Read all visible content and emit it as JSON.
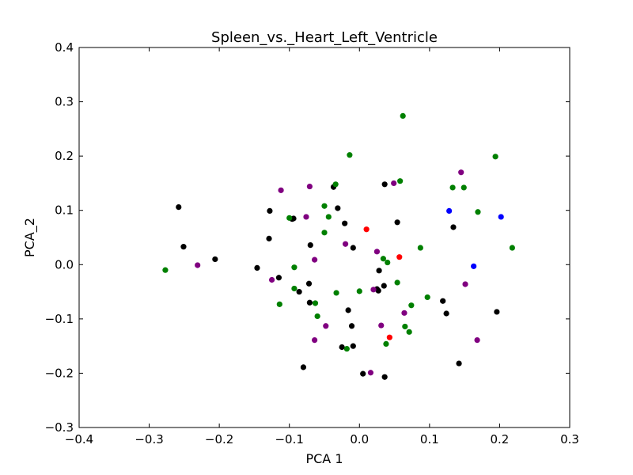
{
  "chart_data": {
    "type": "scatter",
    "title": "Spleen_vs._Heart_Left_Ventricle",
    "xlabel": "PCA 1",
    "ylabel": "PCA_2",
    "xlim": [
      -0.4,
      0.3
    ],
    "ylim": [
      -0.3,
      0.4
    ],
    "x_ticks": [
      -0.4,
      -0.3,
      -0.2,
      -0.1,
      0.0,
      0.1,
      0.2,
      0.3
    ],
    "y_ticks": [
      -0.3,
      -0.2,
      -0.1,
      0.0,
      0.1,
      0.2,
      0.3,
      0.4
    ],
    "x_tick_labels": [
      "−0.4",
      "−0.3",
      "−0.2",
      "−0.1",
      "0.0",
      "0.1",
      "0.2",
      "0.3"
    ],
    "y_tick_labels": [
      "−0.3",
      "−0.2",
      "−0.1",
      "0.0",
      "0.1",
      "0.2",
      "0.3",
      "0.4"
    ],
    "grid": false,
    "legend": "none",
    "series": [
      {
        "color": "#000000",
        "points": [
          [
            -0.258,
            0.106
          ],
          [
            -0.251,
            0.033
          ],
          [
            -0.206,
            0.01
          ],
          [
            -0.146,
            -0.006
          ],
          [
            -0.128,
            0.099
          ],
          [
            -0.129,
            0.048
          ],
          [
            -0.115,
            -0.024
          ],
          [
            -0.096,
            0.084
          ],
          [
            -0.094,
            0.085
          ],
          [
            -0.086,
            -0.05
          ],
          [
            -0.072,
            -0.035
          ],
          [
            -0.071,
            -0.07
          ],
          [
            -0.07,
            0.036
          ],
          [
            -0.08,
            -0.189
          ],
          [
            -0.037,
            0.143
          ],
          [
            -0.031,
            0.104
          ],
          [
            -0.021,
            0.076
          ],
          [
            -0.016,
            -0.084
          ],
          [
            -0.009,
            0.031
          ],
          [
            -0.011,
            -0.113
          ],
          [
            -0.025,
            -0.152
          ],
          [
            -0.009,
            -0.15
          ],
          [
            0.005,
            -0.201
          ],
          [
            0.025,
            -0.045
          ],
          [
            0.027,
            -0.048
          ],
          [
            0.028,
            -0.011
          ],
          [
            0.035,
            -0.039
          ],
          [
            0.036,
            0.148
          ],
          [
            0.036,
            -0.207
          ],
          [
            0.054,
            0.078
          ],
          [
            0.119,
            -0.067
          ],
          [
            0.124,
            -0.09
          ],
          [
            0.134,
            0.069
          ],
          [
            0.142,
            -0.182
          ],
          [
            0.196,
            -0.087
          ]
        ]
      },
      {
        "color": "#008000",
        "points": [
          [
            -0.277,
            -0.01
          ],
          [
            -0.114,
            -0.073
          ],
          [
            -0.1,
            0.086
          ],
          [
            -0.093,
            -0.005
          ],
          [
            -0.093,
            -0.044
          ],
          [
            -0.063,
            -0.071
          ],
          [
            -0.06,
            -0.095
          ],
          [
            -0.05,
            0.108
          ],
          [
            -0.05,
            0.059
          ],
          [
            -0.044,
            0.088
          ],
          [
            -0.034,
            0.148
          ],
          [
            -0.033,
            -0.052
          ],
          [
            -0.018,
            -0.155
          ],
          [
            -0.014,
            0.202
          ],
          [
            0.0,
            -0.049
          ],
          [
            0.034,
            0.011
          ],
          [
            0.038,
            -0.146
          ],
          [
            0.04,
            0.004
          ],
          [
            0.054,
            -0.033
          ],
          [
            0.058,
            0.154
          ],
          [
            0.062,
            0.274
          ],
          [
            0.065,
            -0.114
          ],
          [
            0.071,
            -0.124
          ],
          [
            0.074,
            -0.075
          ],
          [
            0.087,
            0.031
          ],
          [
            0.097,
            -0.06
          ],
          [
            0.133,
            0.142
          ],
          [
            0.149,
            0.142
          ],
          [
            0.169,
            0.097
          ],
          [
            0.194,
            0.199
          ],
          [
            0.218,
            0.031
          ]
        ]
      },
      {
        "color": "#800080",
        "points": [
          [
            -0.231,
            -0.001
          ],
          [
            -0.125,
            -0.028
          ],
          [
            -0.112,
            0.137
          ],
          [
            -0.076,
            0.088
          ],
          [
            -0.071,
            0.144
          ],
          [
            -0.064,
            0.009
          ],
          [
            -0.064,
            -0.139
          ],
          [
            -0.048,
            -0.113
          ],
          [
            -0.02,
            0.038
          ],
          [
            0.016,
            -0.199
          ],
          [
            0.02,
            -0.046
          ],
          [
            0.025,
            0.024
          ],
          [
            0.031,
            -0.112
          ],
          [
            0.049,
            0.15
          ],
          [
            0.064,
            -0.089
          ],
          [
            0.145,
            0.17
          ],
          [
            0.151,
            -0.036
          ],
          [
            0.168,
            -0.139
          ]
        ]
      },
      {
        "color": "#ff0000",
        "points": [
          [
            0.01,
            0.065
          ],
          [
            0.043,
            -0.134
          ],
          [
            0.057,
            0.014
          ]
        ]
      },
      {
        "color": "#0000ff",
        "points": [
          [
            0.128,
            0.099
          ],
          [
            0.163,
            -0.003
          ],
          [
            0.202,
            0.088
          ]
        ]
      }
    ]
  }
}
